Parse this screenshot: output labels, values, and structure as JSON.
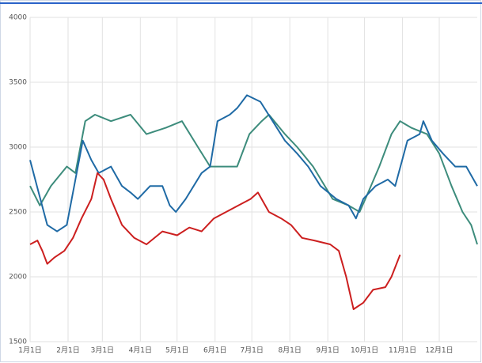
{
  "chart_data": {
    "type": "line",
    "xlim": [
      0,
      365
    ],
    "ylim": [
      1500,
      4000
    ],
    "yticks": [
      1500,
      2000,
      2500,
      3000,
      3500,
      4000
    ],
    "xticks": [
      {
        "value": 0,
        "label": "1月1日"
      },
      {
        "value": 31,
        "label": "2月1日"
      },
      {
        "value": 59,
        "label": "3月1日"
      },
      {
        "value": 90,
        "label": "4月1日"
      },
      {
        "value": 120,
        "label": "5月1日"
      },
      {
        "value": 151,
        "label": "6月1日"
      },
      {
        "value": 181,
        "label": "7月1日"
      },
      {
        "value": 212,
        "label": "8月1日"
      },
      {
        "value": 243,
        "label": "9月1日"
      },
      {
        "value": 273,
        "label": "10月1日"
      },
      {
        "value": 304,
        "label": "11月1日"
      },
      {
        "value": 334,
        "label": "12月1日"
      }
    ],
    "grid": true,
    "series": [
      {
        "color": "#3d8c7c",
        "x": [
          0,
          8,
          17,
          30,
          37,
          45,
          53,
          66,
          82,
          95,
          111,
          124,
          137,
          147,
          163,
          169,
          179,
          189,
          195,
          208,
          218,
          231,
          247,
          260,
          269,
          276,
          285,
          295,
          302,
          311,
          324,
          334,
          344,
          353,
          360,
          365
        ],
        "values": [
          2700,
          2550,
          2700,
          2850,
          2800,
          3200,
          3250,
          3200,
          3250,
          3100,
          3150,
          3200,
          3000,
          2850,
          2850,
          2850,
          3100,
          3200,
          3250,
          3100,
          3000,
          2850,
          2600,
          2550,
          2500,
          2650,
          2850,
          3100,
          3200,
          3150,
          3100,
          2950,
          2700,
          2500,
          2400,
          2250
        ]
      },
      {
        "color": "#1f6aa5",
        "x": [
          0,
          7,
          14,
          22,
          30,
          37,
          43,
          50,
          56,
          66,
          75,
          82,
          88,
          98,
          108,
          114,
          119,
          127,
          140,
          147,
          153,
          163,
          169,
          177,
          188,
          198,
          208,
          218,
          227,
          237,
          250,
          260,
          266,
          272,
          282,
          292,
          298,
          308,
          318,
          321,
          328,
          337,
          347,
          356,
          365
        ],
        "values": [
          2900,
          2650,
          2400,
          2350,
          2400,
          2750,
          3050,
          2900,
          2800,
          2850,
          2700,
          2650,
          2600,
          2700,
          2700,
          2550,
          2500,
          2600,
          2800,
          2850,
          3200,
          3250,
          3300,
          3400,
          3350,
          3200,
          3050,
          2950,
          2850,
          2700,
          2600,
          2550,
          2450,
          2600,
          2700,
          2750,
          2700,
          3050,
          3100,
          3200,
          3050,
          2950,
          2850,
          2850,
          2700
        ]
      },
      {
        "color": "#cc1f1f",
        "x": [
          0,
          6,
          10,
          14,
          20,
          28,
          35,
          42,
          50,
          55,
          60,
          66,
          75,
          85,
          95,
          108,
          120,
          130,
          140,
          150,
          160,
          170,
          180,
          186,
          195,
          205,
          213,
          222,
          232,
          245,
          252,
          258,
          264,
          272,
          280,
          290,
          295,
          302
        ],
        "values": [
          2250,
          2280,
          2200,
          2100,
          2150,
          2200,
          2300,
          2450,
          2600,
          2800,
          2750,
          2600,
          2400,
          2300,
          2250,
          2350,
          2320,
          2380,
          2350,
          2450,
          2500,
          2550,
          2600,
          2650,
          2500,
          2450,
          2400,
          2300,
          2280,
          2250,
          2200,
          2000,
          1750,
          1800,
          1900,
          1920,
          2000,
          2170
        ]
      }
    ]
  }
}
